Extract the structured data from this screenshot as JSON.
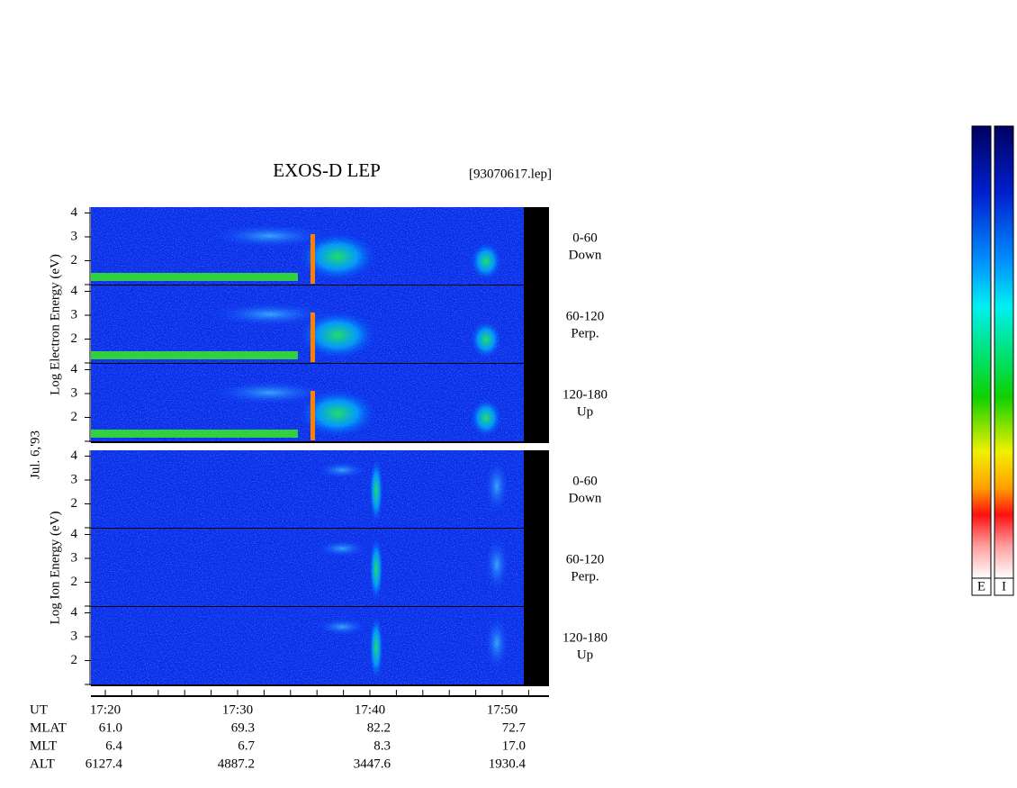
{
  "title": "EXOS-D LEP",
  "file": "[93070617.lep]",
  "date": "Jul. 6,'93",
  "groups": [
    {
      "label": "Log  Electron  Energy  (eV)",
      "panels": [
        {
          "angle": "0-60",
          "dir": "Down"
        },
        {
          "angle": "60-120",
          "dir": "Perp."
        },
        {
          "angle": "120-180",
          "dir": "Up"
        }
      ],
      "yticks": [
        2,
        3,
        4
      ]
    },
    {
      "label": "Log  Ion  Energy  (eV)",
      "panels": [
        {
          "angle": "0-60",
          "dir": "Down"
        },
        {
          "angle": "60-120",
          "dir": "Perp."
        },
        {
          "angle": "120-180",
          "dir": "Up"
        }
      ],
      "yticks": [
        2,
        3,
        4
      ]
    }
  ],
  "orbit": {
    "header": [
      "UT",
      "17:20",
      "17:30",
      "17:40",
      "17:50"
    ],
    "rows": [
      [
        "MLAT",
        "61.0",
        "69.3",
        "82.2",
        "72.7"
      ],
      [
        "MLT",
        "6.4",
        "6.7",
        "8.3",
        "17.0"
      ],
      [
        "ALT",
        "6127.4",
        "4887.2",
        "3447.6",
        "1930.4"
      ]
    ]
  },
  "colorbars": [
    "E",
    "I"
  ]
}
